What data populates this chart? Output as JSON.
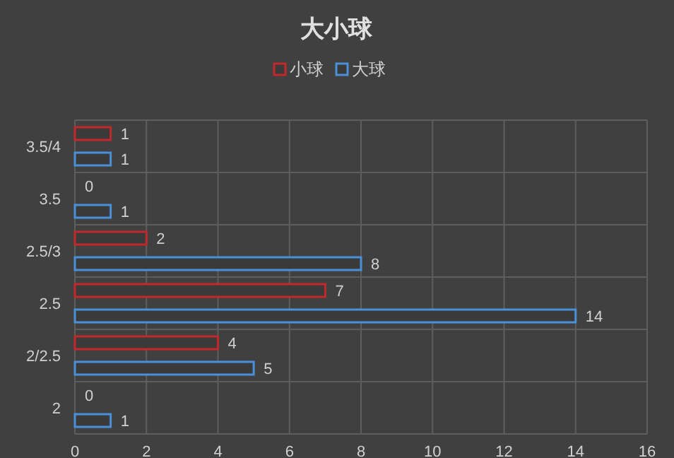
{
  "chart_data": {
    "type": "bar",
    "orientation": "horizontal",
    "title": "大小球",
    "categories": [
      "3.5/4",
      "3.5",
      "2.5/3",
      "2.5",
      "2/2.5",
      "2"
    ],
    "series": [
      {
        "name": "小球",
        "color": "#c0282c",
        "values": [
          1,
          0,
          2,
          7,
          4,
          0
        ]
      },
      {
        "name": "大球",
        "color": "#4a90d9",
        "values": [
          1,
          1,
          8,
          14,
          5,
          1
        ]
      }
    ],
    "xlim": [
      0,
      16
    ],
    "xticks": [
      0,
      2,
      4,
      6,
      8,
      10,
      12,
      14,
      16
    ],
    "grid": true,
    "legend": "top",
    "data_labels": true
  }
}
